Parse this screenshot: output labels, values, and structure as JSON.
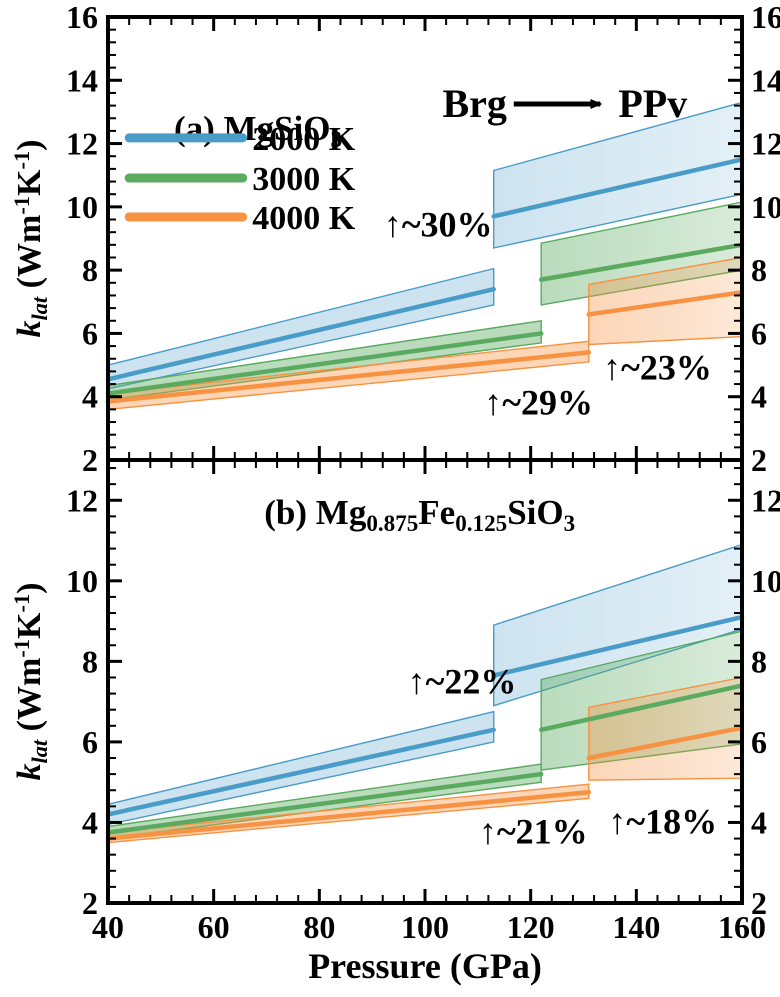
{
  "chart_data": {
    "type": "line",
    "xlabel": "Pressure (GPa)",
    "ylabel_runs": [
      {
        "t": "k",
        "i": true
      },
      {
        "t": "lat",
        "i": true,
        "sub": true
      },
      {
        "t": " (Wm"
      },
      {
        "t": "-1",
        "sup": true
      },
      {
        "t": "K"
      },
      {
        "t": "-1",
        "sup": true
      },
      {
        "t": ")"
      }
    ],
    "xlim": [
      40,
      160
    ],
    "x_ticks": [
      40,
      60,
      80,
      100,
      120,
      140,
      160
    ],
    "x_minor_step": 4,
    "frame_color": "#000000",
    "background": "#ffffff",
    "legend": {
      "entries": [
        {
          "label": "2000 K",
          "color": "#4a9cc8"
        },
        {
          "label": "3000 K",
          "color": "#5aaa60"
        },
        {
          "label": "4000 K",
          "color": "#f69241"
        }
      ],
      "line_x_gpa": [
        44,
        65.5
      ],
      "label_x_gpa": 67.3,
      "rows_y": [
        12.18,
        10.91,
        9.68
      ],
      "panel": "a"
    },
    "transition_annotation": {
      "text_left": "Brg",
      "text_right": "PPv",
      "panel": "a",
      "y": 13.25,
      "text_left_x": 115.5,
      "text_right_x": 136.6,
      "arrow_x": [
        116.8,
        133.2
      ]
    },
    "panels": [
      {
        "id": "a",
        "title_runs": [
          {
            "t": "(a) MgSiO"
          },
          {
            "t": "3",
            "sub": true
          }
        ],
        "title_pos": {
          "x": 68.4,
          "y": 12.5
        },
        "ylim": [
          2,
          16
        ],
        "y_ticks": [
          2,
          4,
          6,
          8,
          10,
          12,
          14,
          16
        ],
        "y_minor_step": 0.4,
        "series": [
          {
            "name": "2000 K",
            "color": "#4a9cc8",
            "fill_alpha": 0.28,
            "segments": [
              {
                "phase": "Brg",
                "x": [
                  40,
                  113
                ],
                "y": [
                  4.55,
                  7.4
                ],
                "lo": [
                  4.25,
                  6.9
                ],
                "hi": [
                  5.0,
                  8.05
                ]
              },
              {
                "phase": "PPv",
                "x": [
                  113,
                  160
                ],
                "y": [
                  9.7,
                  11.5
                ],
                "lo": [
                  8.7,
                  10.4
                ],
                "hi": [
                  11.15,
                  13.3
                ]
              }
            ],
            "jump_label": "↑~30%",
            "jump_label_pos": {
              "x": 102.5,
              "y": 9.45
            }
          },
          {
            "name": "3000 K",
            "color": "#5aaa60",
            "fill_alpha": 0.42,
            "segments": [
              {
                "phase": "Brg",
                "x": [
                  40,
                  122
                ],
                "y": [
                  4.1,
                  6.0
                ],
                "lo": [
                  3.9,
                  5.7
                ],
                "hi": [
                  4.35,
                  6.4
                ]
              },
              {
                "phase": "PPv",
                "x": [
                  122,
                  160
                ],
                "y": [
                  7.7,
                  8.8
                ],
                "lo": [
                  6.9,
                  8.0
                ],
                "hi": [
                  8.85,
                  10.15
                ]
              }
            ],
            "jump_label": "↑~29%",
            "jump_label_pos": {
              "x": 121.5,
              "y": 3.82
            }
          },
          {
            "name": "4000 K",
            "color": "#f69241",
            "fill_alpha": 0.38,
            "segments": [
              {
                "phase": "Brg",
                "x": [
                  40,
                  131
                ],
                "y": [
                  3.85,
                  5.4
                ],
                "lo": [
                  3.6,
                  5.1
                ],
                "hi": [
                  4.1,
                  5.75
                ]
              },
              {
                "phase": "PPv",
                "x": [
                  131,
                  160
                ],
                "y": [
                  6.6,
                  7.3
                ],
                "lo": [
                  5.65,
                  5.9
                ],
                "hi": [
                  7.55,
                  8.4
                ]
              }
            ],
            "jump_label": "↑~23%",
            "jump_label_pos": {
              "x": 144,
              "y": 4.93
            }
          }
        ]
      },
      {
        "id": "b",
        "title_runs": [
          {
            "t": "(b) Mg"
          },
          {
            "t": "0.875",
            "sub": true
          },
          {
            "t": "Fe"
          },
          {
            "t": "0.125",
            "sub": true
          },
          {
            "t": "SiO"
          },
          {
            "t": "3",
            "sub": true
          }
        ],
        "title_pos": {
          "x": 99,
          "y": 11.71
        },
        "ylim": [
          2,
          13
        ],
        "y_ticks": [
          2,
          4,
          6,
          8,
          10,
          12
        ],
        "y_minor_step": 0.4,
        "series": [
          {
            "name": "2000 K",
            "color": "#4a9cc8",
            "fill_alpha": 0.28,
            "segments": [
              {
                "phase": "Brg",
                "x": [
                  40,
                  113
                ],
                "y": [
                  4.2,
                  6.3
                ],
                "lo": [
                  3.95,
                  6.0
                ],
                "hi": [
                  4.45,
                  6.75
                ]
              },
              {
                "phase": "PPv",
                "x": [
                  113,
                  160
                ],
                "y": [
                  7.65,
                  9.1
                ],
                "lo": [
                  6.9,
                  8.8
                ],
                "hi": [
                  8.9,
                  10.9
                ]
              }
            ],
            "jump_label": "↑~22%",
            "jump_label_pos": {
              "x": 107,
              "y": 7.5
            }
          },
          {
            "name": "3000 K",
            "color": "#5aaa60",
            "fill_alpha": 0.42,
            "segments": [
              {
                "phase": "Brg",
                "x": [
                  40,
                  122
                ],
                "y": [
                  3.75,
                  5.2
                ],
                "lo": [
                  3.6,
                  5.0
                ],
                "hi": [
                  3.9,
                  5.45
                ]
              },
              {
                "phase": "PPv",
                "x": [
                  122,
                  160
                ],
                "y": [
                  6.3,
                  7.4
                ],
                "lo": [
                  5.3,
                  5.95
                ],
                "hi": [
                  7.55,
                  8.75
                ]
              }
            ],
            "jump_label": "↑~21%",
            "jump_label_pos": {
              "x": 120.5,
              "y": 3.77
            }
          },
          {
            "name": "4000 K",
            "color": "#f69241",
            "fill_alpha": 0.38,
            "segments": [
              {
                "phase": "Brg",
                "x": [
                  40,
                  131
                ],
                "y": [
                  3.6,
                  4.75
                ],
                "lo": [
                  3.5,
                  4.6
                ],
                "hi": [
                  3.75,
                  4.95
                ]
              },
              {
                "phase": "PPv",
                "x": [
                  131,
                  160
                ],
                "y": [
                  5.6,
                  6.35
                ],
                "lo": [
                  5.05,
                  5.1
                ],
                "hi": [
                  6.86,
                  7.6
                ]
              }
            ],
            "jump_label": "↑~18%",
            "jump_label_pos": {
              "x": 145,
              "y": 4.02
            }
          }
        ]
      }
    ]
  }
}
